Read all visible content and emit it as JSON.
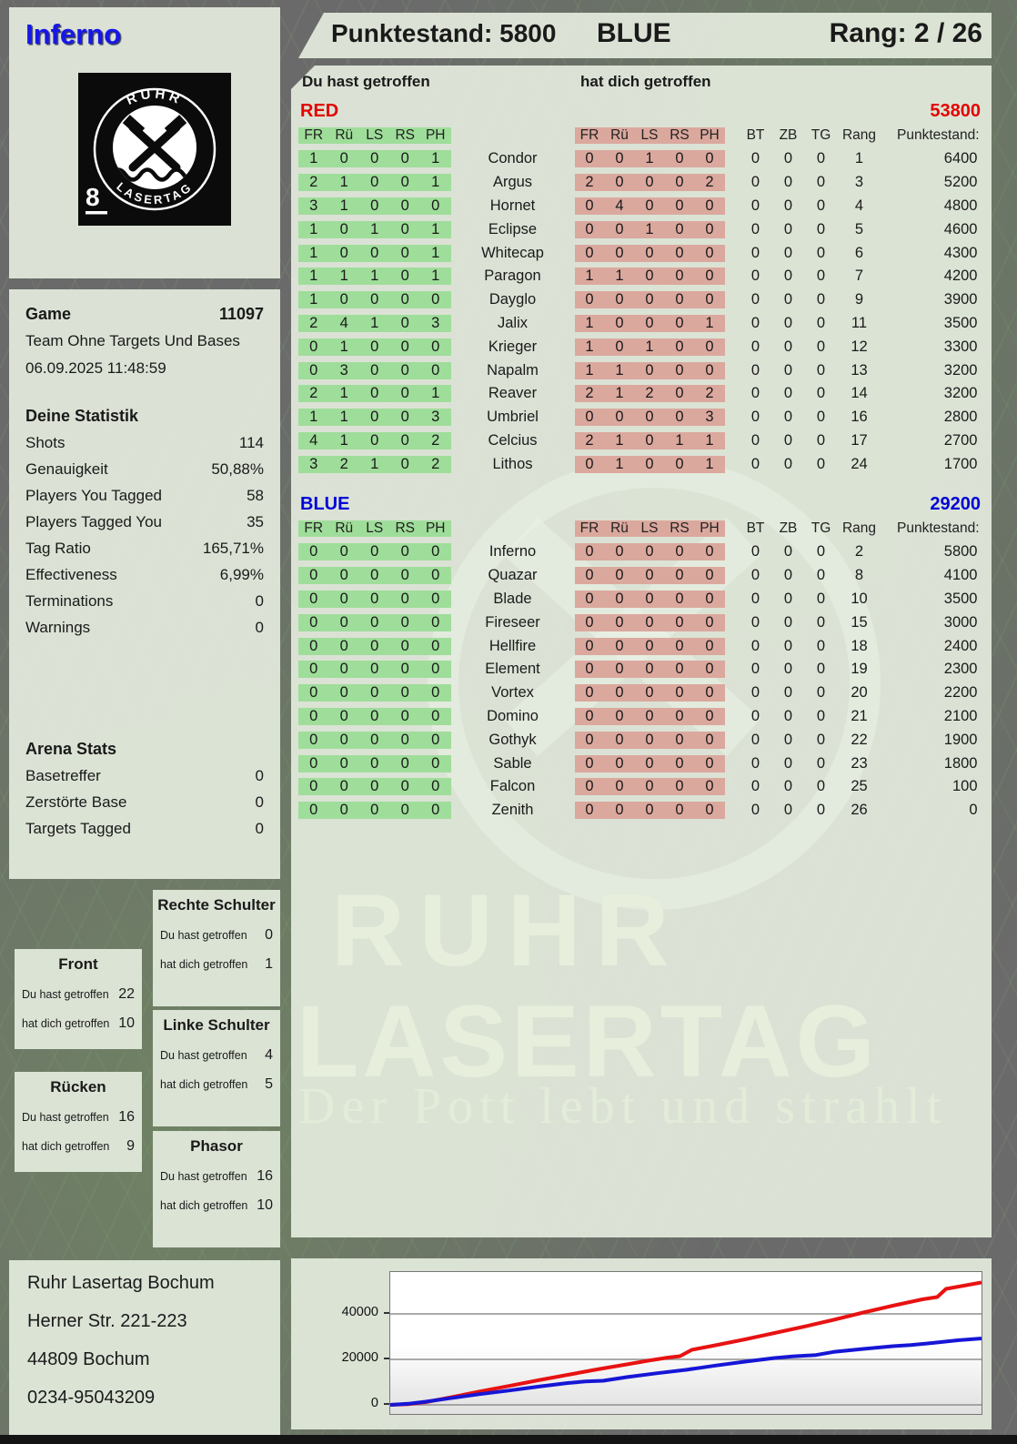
{
  "player_name": "Inferno",
  "header": {
    "punktestand": "Punktestand: 5800",
    "team": "BLUE",
    "rang": "Rang: 2 / 26"
  },
  "logo": {
    "arc_top": "RUHR",
    "arc_bottom": "LASERTAG",
    "badge": "8"
  },
  "game_info": {
    "title": "Game",
    "number": "11097",
    "mode": "Team Ohne Targets Und Bases",
    "datetime": "06.09.2025 11:48:59"
  },
  "deine_statistik": {
    "title": "Deine Statistik",
    "rows": [
      {
        "label": "Shots",
        "value": "114"
      },
      {
        "label": "Genauigkeit",
        "value": "50,88%"
      },
      {
        "label": "Players You Tagged",
        "value": "58"
      },
      {
        "label": "Players Tagged You",
        "value": "35"
      },
      {
        "label": "Tag Ratio",
        "value": "165,71%"
      },
      {
        "label": "Effectiveness",
        "value": "6,99%"
      },
      {
        "label": "Terminations",
        "value": "0"
      },
      {
        "label": "Warnings",
        "value": "0"
      }
    ]
  },
  "arena_stats": {
    "title": "Arena Stats",
    "rows": [
      {
        "label": "Basetreffer",
        "value": "0"
      },
      {
        "label": "Zerstörte Base",
        "value": "0"
      },
      {
        "label": "Targets Tagged",
        "value": "0"
      }
    ]
  },
  "body_stats": {
    "du_label": "Du hast getroffen",
    "dich_label": "hat dich getroffen",
    "panels": [
      {
        "id": "rechte-schulter",
        "title": "Rechte Schulter",
        "du": "0",
        "dich": "1"
      },
      {
        "id": "front",
        "title": "Front",
        "du": "22",
        "dich": "10"
      },
      {
        "id": "linke-schulter",
        "title": "Linke Schulter",
        "du": "4",
        "dich": "5"
      },
      {
        "id": "ruecken",
        "title": "Rücken",
        "du": "16",
        "dich": "9"
      },
      {
        "id": "phasor",
        "title": "Phasor",
        "du": "16",
        "dich": "10"
      }
    ]
  },
  "table": {
    "you_header": "Du hast getroffen",
    "them_header": "hat dich getroffen",
    "hit_cols": [
      "FR",
      "Rü",
      "LS",
      "RS",
      "PH"
    ],
    "right_cols": [
      "BT",
      "ZB",
      "TG",
      "Rang",
      "Punktestand:"
    ],
    "teams": [
      {
        "key": "red",
        "label": "RED",
        "total": "53800",
        "rows": [
          {
            "name": "Condor",
            "you": [
              "1",
              "0",
              "0",
              "0",
              "1"
            ],
            "them": [
              "0",
              "0",
              "1",
              "0",
              "0"
            ],
            "bt": "0",
            "zb": "0",
            "tg": "0",
            "rang": "1",
            "punkte": "6400"
          },
          {
            "name": "Argus",
            "you": [
              "2",
              "1",
              "0",
              "0",
              "1"
            ],
            "them": [
              "2",
              "0",
              "0",
              "0",
              "2"
            ],
            "bt": "0",
            "zb": "0",
            "tg": "0",
            "rang": "3",
            "punkte": "5200"
          },
          {
            "name": "Hornet",
            "you": [
              "3",
              "1",
              "0",
              "0",
              "0"
            ],
            "them": [
              "0",
              "4",
              "0",
              "0",
              "0"
            ],
            "bt": "0",
            "zb": "0",
            "tg": "0",
            "rang": "4",
            "punkte": "4800"
          },
          {
            "name": "Eclipse",
            "you": [
              "1",
              "0",
              "1",
              "0",
              "1"
            ],
            "them": [
              "0",
              "0",
              "1",
              "0",
              "0"
            ],
            "bt": "0",
            "zb": "0",
            "tg": "0",
            "rang": "5",
            "punkte": "4600"
          },
          {
            "name": "Whitecap",
            "you": [
              "1",
              "0",
              "0",
              "0",
              "1"
            ],
            "them": [
              "0",
              "0",
              "0",
              "0",
              "0"
            ],
            "bt": "0",
            "zb": "0",
            "tg": "0",
            "rang": "6",
            "punkte": "4300"
          },
          {
            "name": "Paragon",
            "you": [
              "1",
              "1",
              "1",
              "0",
              "1"
            ],
            "them": [
              "1",
              "1",
              "0",
              "0",
              "0"
            ],
            "bt": "0",
            "zb": "0",
            "tg": "0",
            "rang": "7",
            "punkte": "4200"
          },
          {
            "name": "Dayglo",
            "you": [
              "1",
              "0",
              "0",
              "0",
              "0"
            ],
            "them": [
              "0",
              "0",
              "0",
              "0",
              "0"
            ],
            "bt": "0",
            "zb": "0",
            "tg": "0",
            "rang": "9",
            "punkte": "3900"
          },
          {
            "name": "Jalix",
            "you": [
              "2",
              "4",
              "1",
              "0",
              "3"
            ],
            "them": [
              "1",
              "0",
              "0",
              "0",
              "1"
            ],
            "bt": "0",
            "zb": "0",
            "tg": "0",
            "rang": "11",
            "punkte": "3500"
          },
          {
            "name": "Krieger",
            "you": [
              "0",
              "1",
              "0",
              "0",
              "0"
            ],
            "them": [
              "1",
              "0",
              "1",
              "0",
              "0"
            ],
            "bt": "0",
            "zb": "0",
            "tg": "0",
            "rang": "12",
            "punkte": "3300"
          },
          {
            "name": "Napalm",
            "you": [
              "0",
              "3",
              "0",
              "0",
              "0"
            ],
            "them": [
              "1",
              "1",
              "0",
              "0",
              "0"
            ],
            "bt": "0",
            "zb": "0",
            "tg": "0",
            "rang": "13",
            "punkte": "3200"
          },
          {
            "name": "Reaver",
            "you": [
              "2",
              "1",
              "0",
              "0",
              "1"
            ],
            "them": [
              "2",
              "1",
              "2",
              "0",
              "2"
            ],
            "bt": "0",
            "zb": "0",
            "tg": "0",
            "rang": "14",
            "punkte": "3200"
          },
          {
            "name": "Umbriel",
            "you": [
              "1",
              "1",
              "0",
              "0",
              "3"
            ],
            "them": [
              "0",
              "0",
              "0",
              "0",
              "3"
            ],
            "bt": "0",
            "zb": "0",
            "tg": "0",
            "rang": "16",
            "punkte": "2800"
          },
          {
            "name": "Celcius",
            "you": [
              "4",
              "1",
              "0",
              "0",
              "2"
            ],
            "them": [
              "2",
              "1",
              "0",
              "1",
              "1"
            ],
            "bt": "0",
            "zb": "0",
            "tg": "0",
            "rang": "17",
            "punkte": "2700"
          },
          {
            "name": "Lithos",
            "you": [
              "3",
              "2",
              "1",
              "0",
              "2"
            ],
            "them": [
              "0",
              "1",
              "0",
              "0",
              "1"
            ],
            "bt": "0",
            "zb": "0",
            "tg": "0",
            "rang": "24",
            "punkte": "1700"
          }
        ]
      },
      {
        "key": "blue",
        "label": "BLUE",
        "total": "29200",
        "rows": [
          {
            "name": "Inferno",
            "you": [
              "0",
              "0",
              "0",
              "0",
              "0"
            ],
            "them": [
              "0",
              "0",
              "0",
              "0",
              "0"
            ],
            "bt": "0",
            "zb": "0",
            "tg": "0",
            "rang": "2",
            "punkte": "5800"
          },
          {
            "name": "Quazar",
            "you": [
              "0",
              "0",
              "0",
              "0",
              "0"
            ],
            "them": [
              "0",
              "0",
              "0",
              "0",
              "0"
            ],
            "bt": "0",
            "zb": "0",
            "tg": "0",
            "rang": "8",
            "punkte": "4100"
          },
          {
            "name": "Blade",
            "you": [
              "0",
              "0",
              "0",
              "0",
              "0"
            ],
            "them": [
              "0",
              "0",
              "0",
              "0",
              "0"
            ],
            "bt": "0",
            "zb": "0",
            "tg": "0",
            "rang": "10",
            "punkte": "3500"
          },
          {
            "name": "Fireseer",
            "you": [
              "0",
              "0",
              "0",
              "0",
              "0"
            ],
            "them": [
              "0",
              "0",
              "0",
              "0",
              "0"
            ],
            "bt": "0",
            "zb": "0",
            "tg": "0",
            "rang": "15",
            "punkte": "3000"
          },
          {
            "name": "Hellfire",
            "you": [
              "0",
              "0",
              "0",
              "0",
              "0"
            ],
            "them": [
              "0",
              "0",
              "0",
              "0",
              "0"
            ],
            "bt": "0",
            "zb": "0",
            "tg": "0",
            "rang": "18",
            "punkte": "2400"
          },
          {
            "name": "Element",
            "you": [
              "0",
              "0",
              "0",
              "0",
              "0"
            ],
            "them": [
              "0",
              "0",
              "0",
              "0",
              "0"
            ],
            "bt": "0",
            "zb": "0",
            "tg": "0",
            "rang": "19",
            "punkte": "2300"
          },
          {
            "name": "Vortex",
            "you": [
              "0",
              "0",
              "0",
              "0",
              "0"
            ],
            "them": [
              "0",
              "0",
              "0",
              "0",
              "0"
            ],
            "bt": "0",
            "zb": "0",
            "tg": "0",
            "rang": "20",
            "punkte": "2200"
          },
          {
            "name": "Domino",
            "you": [
              "0",
              "0",
              "0",
              "0",
              "0"
            ],
            "them": [
              "0",
              "0",
              "0",
              "0",
              "0"
            ],
            "bt": "0",
            "zb": "0",
            "tg": "0",
            "rang": "21",
            "punkte": "2100"
          },
          {
            "name": "Gothyk",
            "you": [
              "0",
              "0",
              "0",
              "0",
              "0"
            ],
            "them": [
              "0",
              "0",
              "0",
              "0",
              "0"
            ],
            "bt": "0",
            "zb": "0",
            "tg": "0",
            "rang": "22",
            "punkte": "1900"
          },
          {
            "name": "Sable",
            "you": [
              "0",
              "0",
              "0",
              "0",
              "0"
            ],
            "them": [
              "0",
              "0",
              "0",
              "0",
              "0"
            ],
            "bt": "0",
            "zb": "0",
            "tg": "0",
            "rang": "23",
            "punkte": "1800"
          },
          {
            "name": "Falcon",
            "you": [
              "0",
              "0",
              "0",
              "0",
              "0"
            ],
            "them": [
              "0",
              "0",
              "0",
              "0",
              "0"
            ],
            "bt": "0",
            "zb": "0",
            "tg": "0",
            "rang": "25",
            "punkte": "100"
          },
          {
            "name": "Zenith",
            "you": [
              "0",
              "0",
              "0",
              "0",
              "0"
            ],
            "them": [
              "0",
              "0",
              "0",
              "0",
              "0"
            ],
            "bt": "0",
            "zb": "0",
            "tg": "0",
            "rang": "26",
            "punkte": "0"
          }
        ]
      }
    ]
  },
  "watermark": {
    "line1": "RUHR",
    "line2": "LASERTAG",
    "slogan": "Der Pott lebt und strahlt"
  },
  "address": {
    "lines": [
      "Ruhr Lasertag Bochum",
      "Herner Str. 221-223",
      "44809 Bochum",
      "0234-95043209"
    ]
  },
  "colors": {
    "red_team": "#e30400",
    "blue_team": "#0004d6",
    "green_block": "#9fdd9a",
    "red_block": "#dba89e",
    "red_line": "#e81212",
    "blue_line": "#1616d6"
  },
  "chart_data": {
    "type": "line",
    "title": "",
    "xlabel": "",
    "ylabel": "",
    "yticks": [
      0,
      20000,
      40000
    ],
    "ylim": [
      0,
      56000
    ],
    "grid": true,
    "legend": "none",
    "series": [
      {
        "name": "RED cumulative score",
        "color": "#e81212",
        "final": 53800,
        "points": [
          [
            0,
            0
          ],
          [
            0.03,
            300
          ],
          [
            0.06,
            1200
          ],
          [
            0.1,
            3200
          ],
          [
            0.15,
            5800
          ],
          [
            0.2,
            8300
          ],
          [
            0.25,
            10800
          ],
          [
            0.3,
            13200
          ],
          [
            0.35,
            15600
          ],
          [
            0.4,
            17800
          ],
          [
            0.44,
            19600
          ],
          [
            0.47,
            20800
          ],
          [
            0.49,
            21400
          ],
          [
            0.51,
            24200
          ],
          [
            0.55,
            26200
          ],
          [
            0.6,
            28800
          ],
          [
            0.65,
            31600
          ],
          [
            0.7,
            34400
          ],
          [
            0.75,
            37400
          ],
          [
            0.8,
            40600
          ],
          [
            0.85,
            43600
          ],
          [
            0.9,
            46400
          ],
          [
            0.925,
            47400
          ],
          [
            0.94,
            51000
          ],
          [
            0.97,
            52400
          ],
          [
            1,
            53800
          ]
        ]
      },
      {
        "name": "BLUE cumulative score",
        "color": "#1616d6",
        "final": 29200,
        "points": [
          [
            0,
            0
          ],
          [
            0.03,
            500
          ],
          [
            0.06,
            1400
          ],
          [
            0.1,
            2900
          ],
          [
            0.15,
            4700
          ],
          [
            0.2,
            6300
          ],
          [
            0.25,
            8000
          ],
          [
            0.3,
            9600
          ],
          [
            0.33,
            10300
          ],
          [
            0.36,
            10600
          ],
          [
            0.4,
            12200
          ],
          [
            0.45,
            13900
          ],
          [
            0.5,
            15400
          ],
          [
            0.55,
            17300
          ],
          [
            0.6,
            19000
          ],
          [
            0.65,
            20600
          ],
          [
            0.68,
            21300
          ],
          [
            0.72,
            21900
          ],
          [
            0.75,
            23300
          ],
          [
            0.8,
            24600
          ],
          [
            0.85,
            25800
          ],
          [
            0.88,
            26300
          ],
          [
            0.92,
            27300
          ],
          [
            0.96,
            28400
          ],
          [
            1,
            29200
          ]
        ]
      }
    ]
  }
}
